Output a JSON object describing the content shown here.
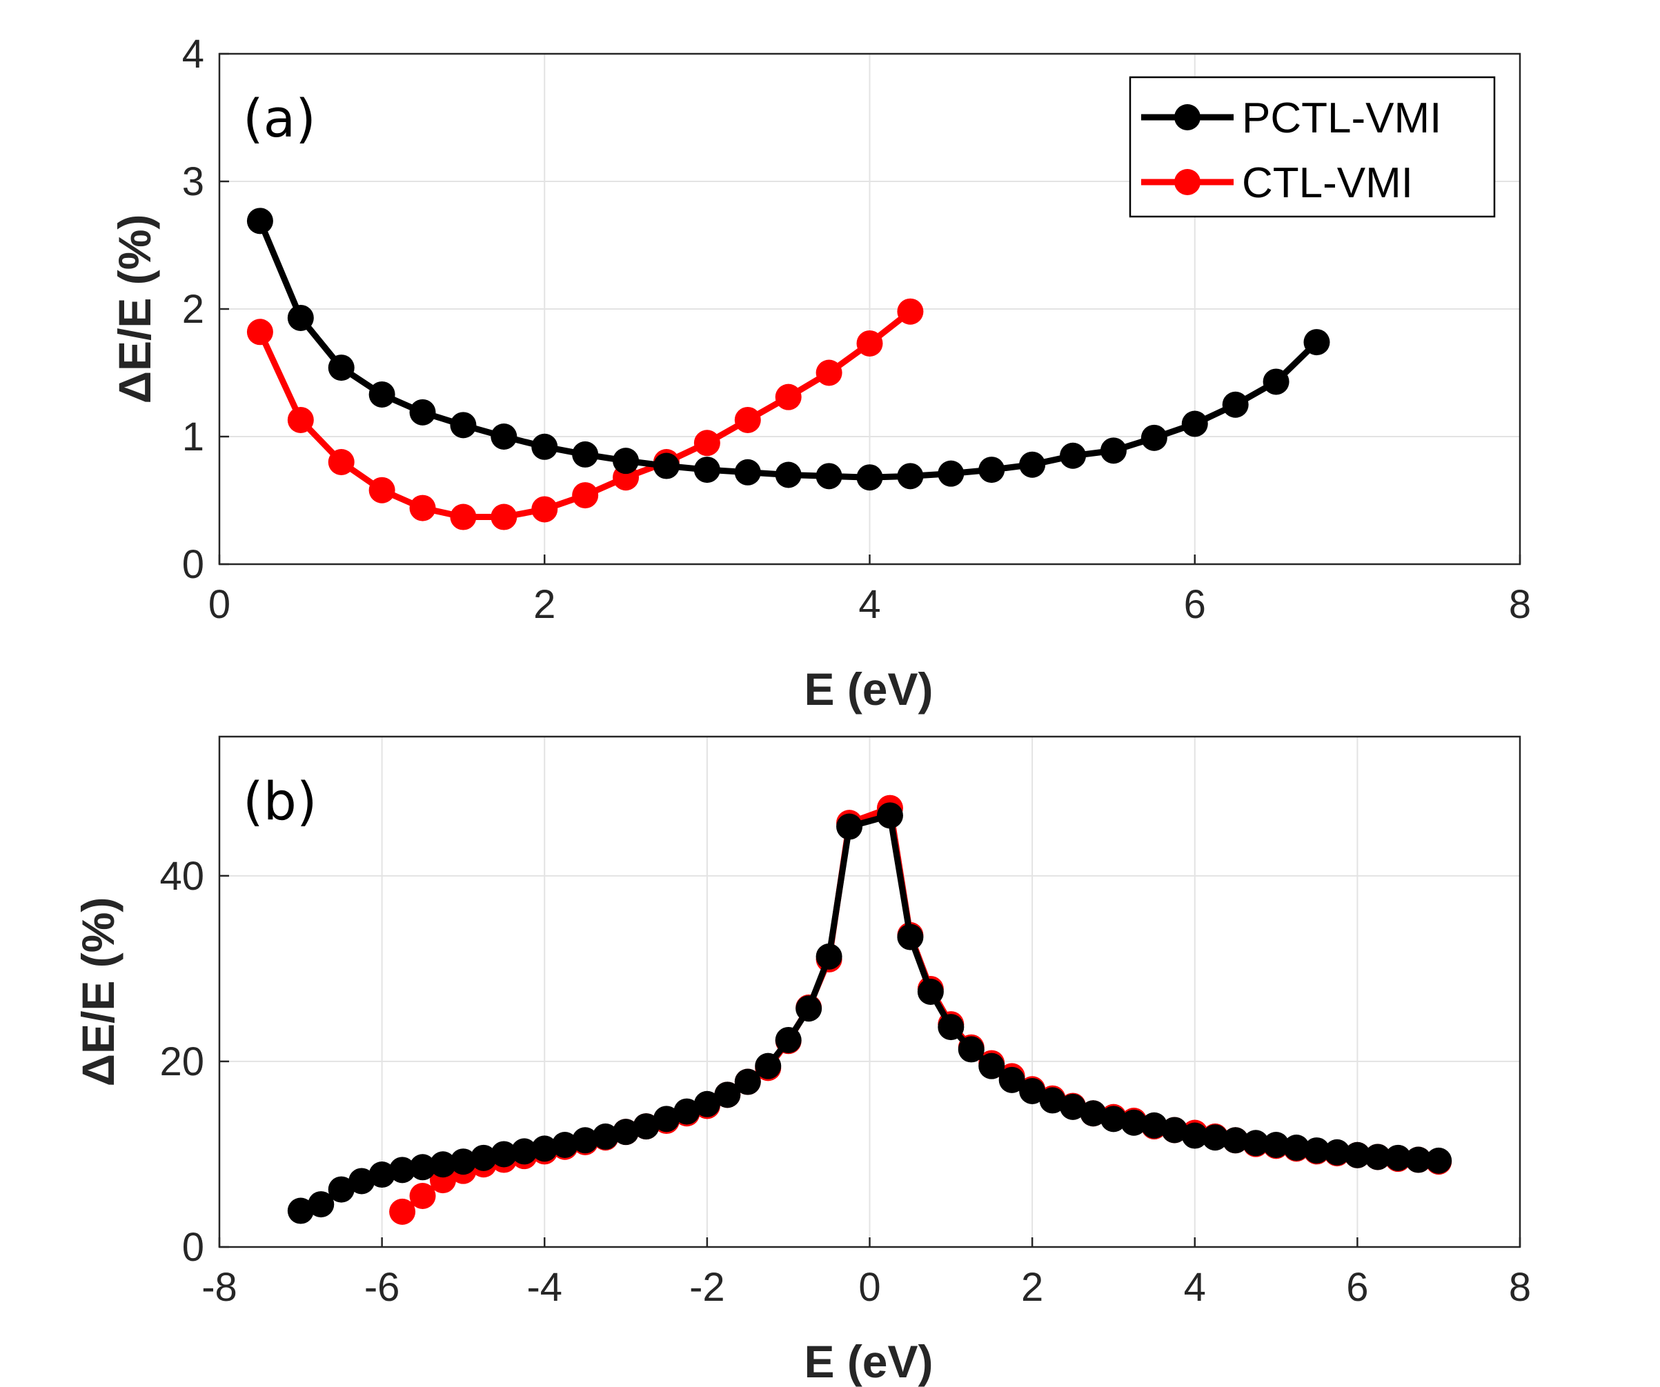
{
  "colors": {
    "pctl": "#000000",
    "ctl": "#ff0000"
  },
  "chart_data": [
    {
      "type": "line",
      "panel_label": "(a)",
      "xlabel": "E (eV)",
      "ylabel": "ΔE/E (%)",
      "xlim": [
        0,
        8
      ],
      "ylim": [
        0,
        4
      ],
      "xticks": [
        0,
        2,
        4,
        6,
        8
      ],
      "yticks": [
        0,
        1,
        2,
        3,
        4
      ],
      "xtick_labels": [
        "0",
        "2",
        "4",
        "6",
        "8"
      ],
      "ytick_labels": [
        "0",
        "1",
        "2",
        "3",
        "4"
      ],
      "grid": true,
      "legend": {
        "placement": "top-right",
        "entries": [
          "PCTL-VMI",
          "CTL-VMI"
        ]
      },
      "series": [
        {
          "name": "CTL-VMI",
          "color": "#ff0000",
          "x": [
            0.25,
            0.5,
            0.75,
            1.0,
            1.25,
            1.5,
            1.75,
            2.0,
            2.25,
            2.5,
            2.75,
            3.0,
            3.25,
            3.5,
            3.75,
            4.0,
            4.25
          ],
          "y": [
            1.82,
            1.13,
            0.8,
            0.58,
            0.44,
            0.37,
            0.37,
            0.43,
            0.54,
            0.68,
            0.8,
            0.95,
            1.13,
            1.31,
            1.5,
            1.73,
            1.98
          ]
        },
        {
          "name": "PCTL-VMI",
          "color": "#000000",
          "x": [
            0.25,
            0.5,
            0.75,
            1.0,
            1.25,
            1.5,
            1.75,
            2.0,
            2.25,
            2.5,
            2.75,
            3.0,
            3.25,
            3.5,
            3.75,
            4.0,
            4.25,
            4.5,
            4.75,
            5.0,
            5.25,
            5.5,
            5.75,
            6.0,
            6.25,
            6.5,
            6.75
          ],
          "y": [
            2.69,
            1.93,
            1.54,
            1.33,
            1.19,
            1.09,
            1.0,
            0.92,
            0.86,
            0.81,
            0.77,
            0.74,
            0.72,
            0.7,
            0.69,
            0.68,
            0.69,
            0.71,
            0.74,
            0.78,
            0.85,
            0.89,
            0.99,
            1.1,
            1.25,
            1.43,
            1.74
          ]
        }
      ]
    },
    {
      "type": "line",
      "panel_label": "(b)",
      "xlabel": "E (eV)",
      "ylabel": "ΔE/E (%)",
      "xlim": [
        -8,
        8
      ],
      "ylim": [
        0,
        55
      ],
      "xticks": [
        -8,
        -6,
        -4,
        -2,
        0,
        2,
        4,
        6,
        8
      ],
      "yticks": [
        0,
        20,
        40
      ],
      "xtick_labels": [
        "-8",
        "-6",
        "-4",
        "-2",
        "0",
        "2",
        "4",
        "6",
        "8"
      ],
      "ytick_labels": [
        "0",
        "20",
        "40"
      ],
      "grid": true,
      "series": [
        {
          "name": "CTL-VMI",
          "color": "#ff0000",
          "x": [
            -5.75,
            -5.5,
            -5.25,
            -5.0,
            -4.75,
            -4.5,
            -4.25,
            -4.0,
            -3.75,
            -3.5,
            -3.25,
            -3.0,
            -2.75,
            -2.5,
            -2.25,
            -2.0,
            -1.75,
            -1.5,
            -1.25,
            -1.0,
            -0.75,
            -0.5,
            -0.25,
            0.25,
            0.5,
            0.75,
            1.0,
            1.25,
            1.5,
            1.75,
            2.0,
            2.25,
            2.5,
            2.75,
            3.0,
            3.25,
            3.5,
            3.75,
            4.0,
            4.25,
            4.5,
            4.75,
            5.0,
            5.25,
            5.5,
            5.75,
            6.0,
            6.25,
            6.5,
            6.75,
            7.0
          ],
          "y": [
            3.8,
            5.5,
            7.2,
            8.2,
            8.9,
            9.4,
            9.8,
            10.3,
            10.8,
            11.3,
            11.8,
            12.4,
            13.0,
            13.6,
            14.4,
            15.2,
            16.4,
            17.8,
            19.3,
            22.2,
            25.8,
            31.0,
            45.7,
            47.3,
            33.6,
            27.8,
            24.0,
            21.5,
            19.8,
            18.4,
            17.0,
            16.0,
            15.2,
            14.4,
            14.0,
            13.6,
            13.0,
            12.6,
            12.3,
            11.9,
            11.5,
            11.1,
            10.9,
            10.6,
            10.3,
            10.1,
            9.9,
            9.7,
            9.5,
            9.4,
            9.2
          ]
        },
        {
          "name": "PCTL-VMI",
          "color": "#000000",
          "x": [
            -7.0,
            -6.75,
            -6.5,
            -6.25,
            -6.0,
            -5.75,
            -5.5,
            -5.25,
            -5.0,
            -4.75,
            -4.5,
            -4.25,
            -4.0,
            -3.75,
            -3.5,
            -3.25,
            -3.0,
            -2.75,
            -2.5,
            -2.25,
            -2.0,
            -1.75,
            -1.5,
            -1.25,
            -1.0,
            -0.75,
            -0.5,
            -0.25,
            0.25,
            0.5,
            0.75,
            1.0,
            1.25,
            1.5,
            1.75,
            2.0,
            2.25,
            2.5,
            2.75,
            3.0,
            3.25,
            3.5,
            3.75,
            4.0,
            4.25,
            4.5,
            4.75,
            5.0,
            5.25,
            5.5,
            5.75,
            6.0,
            6.25,
            6.5,
            6.75,
            7.0
          ],
          "y": [
            3.9,
            4.6,
            6.2,
            7.1,
            7.8,
            8.3,
            8.6,
            8.9,
            9.2,
            9.6,
            10.0,
            10.3,
            10.6,
            11.0,
            11.5,
            11.9,
            12.4,
            13.0,
            13.8,
            14.6,
            15.4,
            16.4,
            17.8,
            19.5,
            22.3,
            25.7,
            31.3,
            45.3,
            46.5,
            33.4,
            27.5,
            23.7,
            21.3,
            19.5,
            18.0,
            16.8,
            15.8,
            15.1,
            14.4,
            13.8,
            13.4,
            13.1,
            12.6,
            12.0,
            11.8,
            11.5,
            11.2,
            11.0,
            10.7,
            10.4,
            10.2,
            9.9,
            9.7,
            9.6,
            9.4,
            9.3
          ]
        }
      ]
    }
  ]
}
